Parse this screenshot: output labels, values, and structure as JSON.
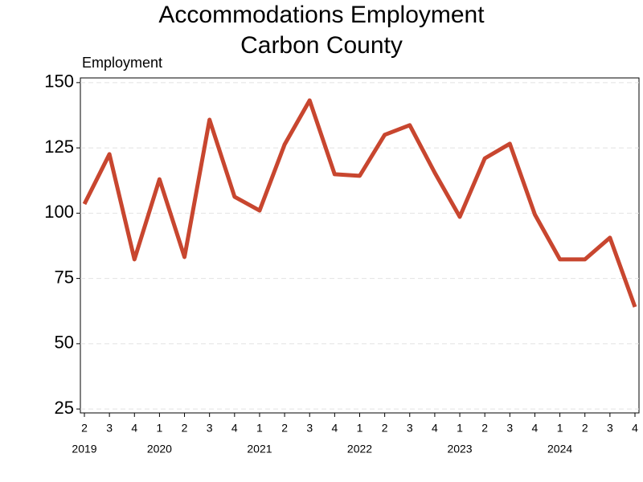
{
  "chart_data": {
    "type": "line",
    "title": "Accommodations Employment",
    "subtitle": "Carbon County",
    "y_label": "Employment",
    "categories": [
      "2",
      "3",
      "4",
      "1",
      "2",
      "3",
      "4",
      "1",
      "2",
      "3",
      "4",
      "1",
      "2",
      "3",
      "4",
      "1",
      "2",
      "3",
      "4",
      "1",
      "2",
      "3",
      "4"
    ],
    "years": [
      "2019",
      "2020",
      "2021",
      "2022",
      "2023",
      "2024"
    ],
    "series": [
      {
        "name": "Employment",
        "color": "#c8462f",
        "values": [
          103.5,
          122.6,
          82.3,
          113,
          83.2,
          135.8,
          106.3,
          101,
          126.3,
          143.2,
          114.9,
          114.3,
          130,
          133.7,
          115.5,
          98.6,
          121,
          126.6,
          99.5,
          82.3,
          82.3,
          90.6,
          64.1
        ]
      }
    ],
    "ylim": [
      23.5,
      151.8
    ],
    "yticks": [
      25,
      50,
      75,
      100,
      125,
      150
    ],
    "grid": true
  }
}
